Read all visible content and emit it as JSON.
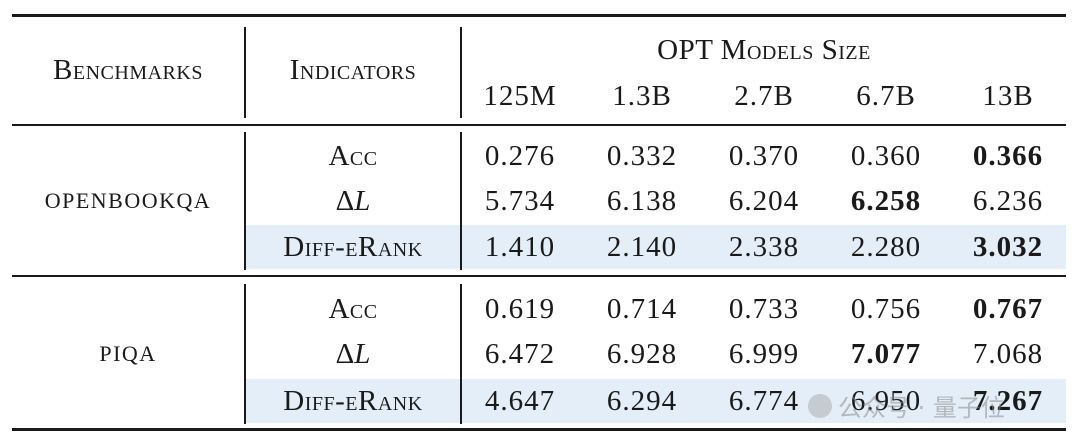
{
  "header": {
    "benchmarks": "Benchmarks",
    "indicators": "Indicators",
    "group_title": "OPT Models Size",
    "sizes": [
      "125M",
      "1.3B",
      "2.7B",
      "6.7B",
      "13B"
    ]
  },
  "groups": [
    {
      "benchmark": "OPENBOOKQA",
      "rows": [
        {
          "indicator": "Acc",
          "values": [
            "0.276",
            "0.332",
            "0.370",
            "0.360",
            "0.366"
          ],
          "bold_index": 4,
          "highlight": false
        },
        {
          "indicator_prefix": "Δ",
          "indicator_var": "L",
          "values": [
            "5.734",
            "6.138",
            "6.204",
            "6.258",
            "6.236"
          ],
          "bold_index": 3,
          "highlight": false
        },
        {
          "indicator": "Diff-eRank",
          "values": [
            "1.410",
            "2.140",
            "2.338",
            "2.280",
            "3.032"
          ],
          "bold_index": 4,
          "highlight": true
        }
      ]
    },
    {
      "benchmark": "PIQA",
      "rows": [
        {
          "indicator": "Acc",
          "values": [
            "0.619",
            "0.714",
            "0.733",
            "0.756",
            "0.767"
          ],
          "bold_index": 4,
          "highlight": false
        },
        {
          "indicator_prefix": "Δ",
          "indicator_var": "L",
          "values": [
            "6.472",
            "6.928",
            "6.999",
            "7.077",
            "7.068"
          ],
          "bold_index": 3,
          "highlight": false
        },
        {
          "indicator": "Diff-eRank",
          "values": [
            "4.647",
            "6.294",
            "6.774",
            "6.950",
            "7.267"
          ],
          "bold_index": 4,
          "highlight": true
        }
      ]
    }
  ],
  "watermark": {
    "text": "公众号 · 量子位",
    "icon": "wechat-icon"
  }
}
